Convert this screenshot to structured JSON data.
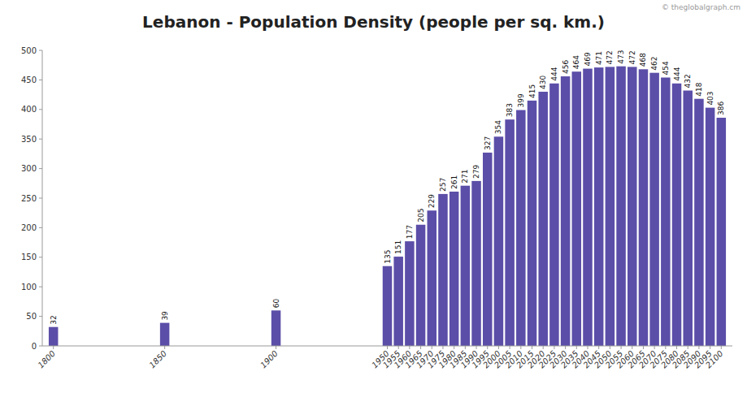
{
  "chart_data": {
    "type": "bar",
    "title": "Lebanon - Population Density (people per sq. km.)",
    "x": [
      1800,
      1850,
      1900,
      1950,
      1955,
      1960,
      1965,
      1970,
      1975,
      1980,
      1985,
      1990,
      1995,
      2000,
      2005,
      2010,
      2015,
      2020,
      2025,
      2030,
      2035,
      2040,
      2045,
      2050,
      2055,
      2060,
      2065,
      2070,
      2075,
      2080,
      2085,
      2090,
      2095,
      2100
    ],
    "values": [
      32,
      39,
      60,
      135,
      151,
      177,
      205,
      229,
      257,
      261,
      271,
      279,
      327,
      354,
      383,
      399,
      415,
      430,
      444,
      456,
      464,
      469,
      471,
      472,
      473,
      472,
      468,
      462,
      454,
      444,
      432,
      418,
      403,
      386
    ],
    "color": "#5B4EA8",
    "xlim": [
      1795,
      2105
    ],
    "xticks": [
      1800,
      1850,
      1900,
      1950,
      1955,
      1960,
      1965,
      1970,
      1975,
      1980,
      1985,
      1990,
      1995,
      2000,
      2005,
      2010,
      2015,
      2020,
      2025,
      2030,
      2035,
      2040,
      2045,
      2050,
      2055,
      2060,
      2065,
      2070,
      2075,
      2080,
      2085,
      2090,
      2095,
      2100
    ],
    "ylim": [
      0,
      500
    ],
    "yticks": [
      0,
      50,
      100,
      150,
      200,
      250,
      300,
      350,
      400,
      450,
      500
    ],
    "grid": false,
    "data_labels": true,
    "annotations": [
      {
        "text": "© theglobalgraph.cm"
      }
    ]
  }
}
